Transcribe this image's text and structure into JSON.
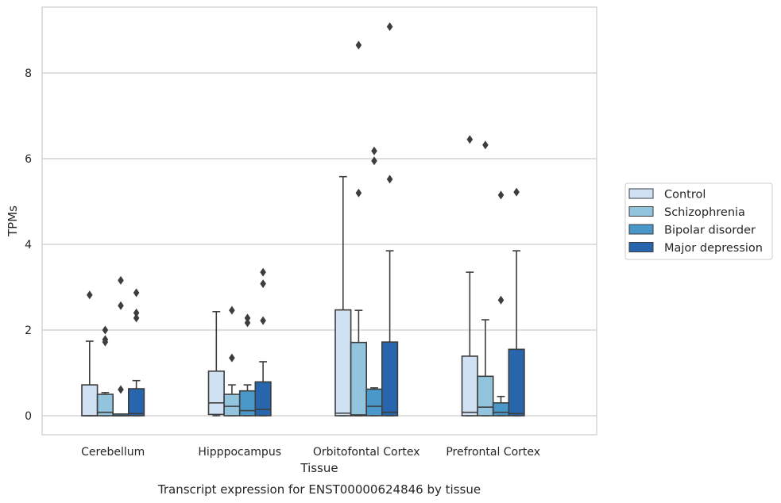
{
  "chart_data": {
    "type": "box",
    "title": "",
    "caption": "Transcript expression for ENST00000624846 by tissue",
    "xlabel": "Tissue",
    "ylabel": "TPMs",
    "ylim": [
      -0.45,
      9.6
    ],
    "yticks": [
      0,
      2,
      4,
      6,
      8
    ],
    "ytick_labels": [
      "0",
      "2",
      "4",
      "6",
      "8"
    ],
    "grid": "horizontal",
    "legend_position": "right",
    "categories": [
      "Cerebellum",
      "Hipppocampus",
      "Orbitofontal Cortex",
      "Prefrontal Cortex"
    ],
    "series": [
      {
        "name": "Control",
        "color": "#cfe1f2",
        "boxes": [
          {
            "q1": 0.0,
            "median": 0.0,
            "q3": 0.72,
            "whisker_low": 0.0,
            "whisker_high": 1.74,
            "outliers": [
              2.82
            ]
          },
          {
            "q1": 0.03,
            "median": 0.3,
            "q3": 1.04,
            "whisker_low": 0.0,
            "whisker_high": 2.43,
            "outliers": []
          },
          {
            "q1": 0.0,
            "median": 0.06,
            "q3": 2.47,
            "whisker_low": 0.0,
            "whisker_high": 5.58,
            "outliers": []
          },
          {
            "q1": 0.0,
            "median": 0.08,
            "q3": 1.39,
            "whisker_low": 0.0,
            "whisker_high": 3.35,
            "outliers": [
              6.45
            ]
          }
        ]
      },
      {
        "name": "Schizophrenia",
        "color": "#93c4de",
        "boxes": [
          {
            "q1": 0.0,
            "median": 0.08,
            "q3": 0.5,
            "whisker_low": 0.0,
            "whisker_high": 0.54,
            "outliers": [
              2.0,
              1.78,
              1.72
            ]
          },
          {
            "q1": 0.0,
            "median": 0.22,
            "q3": 0.5,
            "whisker_low": 0.0,
            "whisker_high": 0.72,
            "outliers": [
              2.46,
              1.35
            ]
          },
          {
            "q1": 0.0,
            "median": 0.02,
            "q3": 1.71,
            "whisker_low": 0.0,
            "whisker_high": 2.46,
            "outliers": [
              8.65,
              5.2
            ]
          },
          {
            "q1": 0.0,
            "median": 0.2,
            "q3": 0.92,
            "whisker_low": 0.0,
            "whisker_high": 2.24,
            "outliers": [
              6.32
            ]
          }
        ]
      },
      {
        "name": "Bipolar disorder",
        "color": "#4a98c9",
        "boxes": [
          {
            "q1": 0.0,
            "median": 0.0,
            "q3": 0.04,
            "whisker_low": 0.0,
            "whisker_high": 0.04,
            "outliers": [
              3.16,
              2.57,
              0.61
            ]
          },
          {
            "q1": 0.0,
            "median": 0.12,
            "q3": 0.58,
            "whisker_low": 0.0,
            "whisker_high": 0.72,
            "outliers": [
              2.28,
              2.17
            ]
          },
          {
            "q1": 0.0,
            "median": 0.22,
            "q3": 0.62,
            "whisker_low": 0.0,
            "whisker_high": 0.65,
            "outliers": [
              6.18,
              5.95
            ]
          },
          {
            "q1": 0.0,
            "median": 0.08,
            "q3": 0.3,
            "whisker_low": 0.0,
            "whisker_high": 0.45,
            "outliers": [
              5.15,
              2.7
            ]
          }
        ]
      },
      {
        "name": "Major depression",
        "color": "#2766ac",
        "boxes": [
          {
            "q1": 0.0,
            "median": 0.05,
            "q3": 0.63,
            "whisker_low": 0.0,
            "whisker_high": 0.82,
            "outliers": [
              2.87,
              2.4,
              2.28
            ]
          },
          {
            "q1": 0.0,
            "median": 0.15,
            "q3": 0.79,
            "whisker_low": 0.0,
            "whisker_high": 1.26,
            "outliers": [
              3.35,
              3.08,
              2.22
            ]
          },
          {
            "q1": 0.0,
            "median": 0.08,
            "q3": 1.72,
            "whisker_low": 0.0,
            "whisker_high": 3.85,
            "outliers": [
              9.08,
              5.52
            ]
          },
          {
            "q1": 0.0,
            "median": 0.05,
            "q3": 1.55,
            "whisker_low": 0.0,
            "whisker_high": 3.85,
            "outliers": [
              5.22
            ]
          }
        ]
      }
    ]
  }
}
